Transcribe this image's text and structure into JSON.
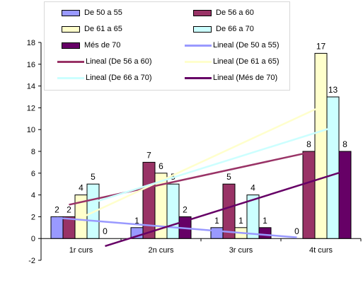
{
  "chart_data": {
    "type": "bar",
    "categories": [
      "1r curs",
      "2n curs",
      "3r curs",
      "4t curs"
    ],
    "series": [
      {
        "name": "De 50 a 55",
        "values": [
          2,
          1,
          1,
          0
        ],
        "color": "#9999ff"
      },
      {
        "name": "De 56 a 60",
        "values": [
          2,
          7,
          5,
          8
        ],
        "color": "#993366"
      },
      {
        "name": "De 61 a 65",
        "values": [
          4,
          6,
          1,
          17
        ],
        "color": "#ffffcc"
      },
      {
        "name": "De 66 a 70",
        "values": [
          5,
          5,
          4,
          13
        ],
        "color": "#ccffff"
      },
      {
        "name": "Més de 70",
        "values": [
          0,
          2,
          1,
          8
        ],
        "color": "#660066"
      }
    ],
    "trendlines": [
      {
        "name": "Lineal (De 50 a 55)",
        "series": 0,
        "color": "#9999ff"
      },
      {
        "name": "Lineal (De 56 a 60)",
        "series": 1,
        "color": "#993366"
      },
      {
        "name": "Lineal (De 61 a 65)",
        "series": 2,
        "color": "#ffffcc"
      },
      {
        "name": "Lineal (De 66 a 70)",
        "series": 3,
        "color": "#ccffff"
      },
      {
        "name": "Lineal (Més de 70)",
        "series": 4,
        "color": "#660066"
      }
    ],
    "data_labels": true,
    "y_ticks": [
      "-2",
      "0",
      "2",
      "4",
      "6",
      "8",
      "10",
      "12",
      "14",
      "16",
      "18"
    ],
    "ylim": [
      -2,
      18
    ],
    "grid": false,
    "legend_position": "top",
    "title": "",
    "xlabel": "",
    "ylabel": ""
  }
}
